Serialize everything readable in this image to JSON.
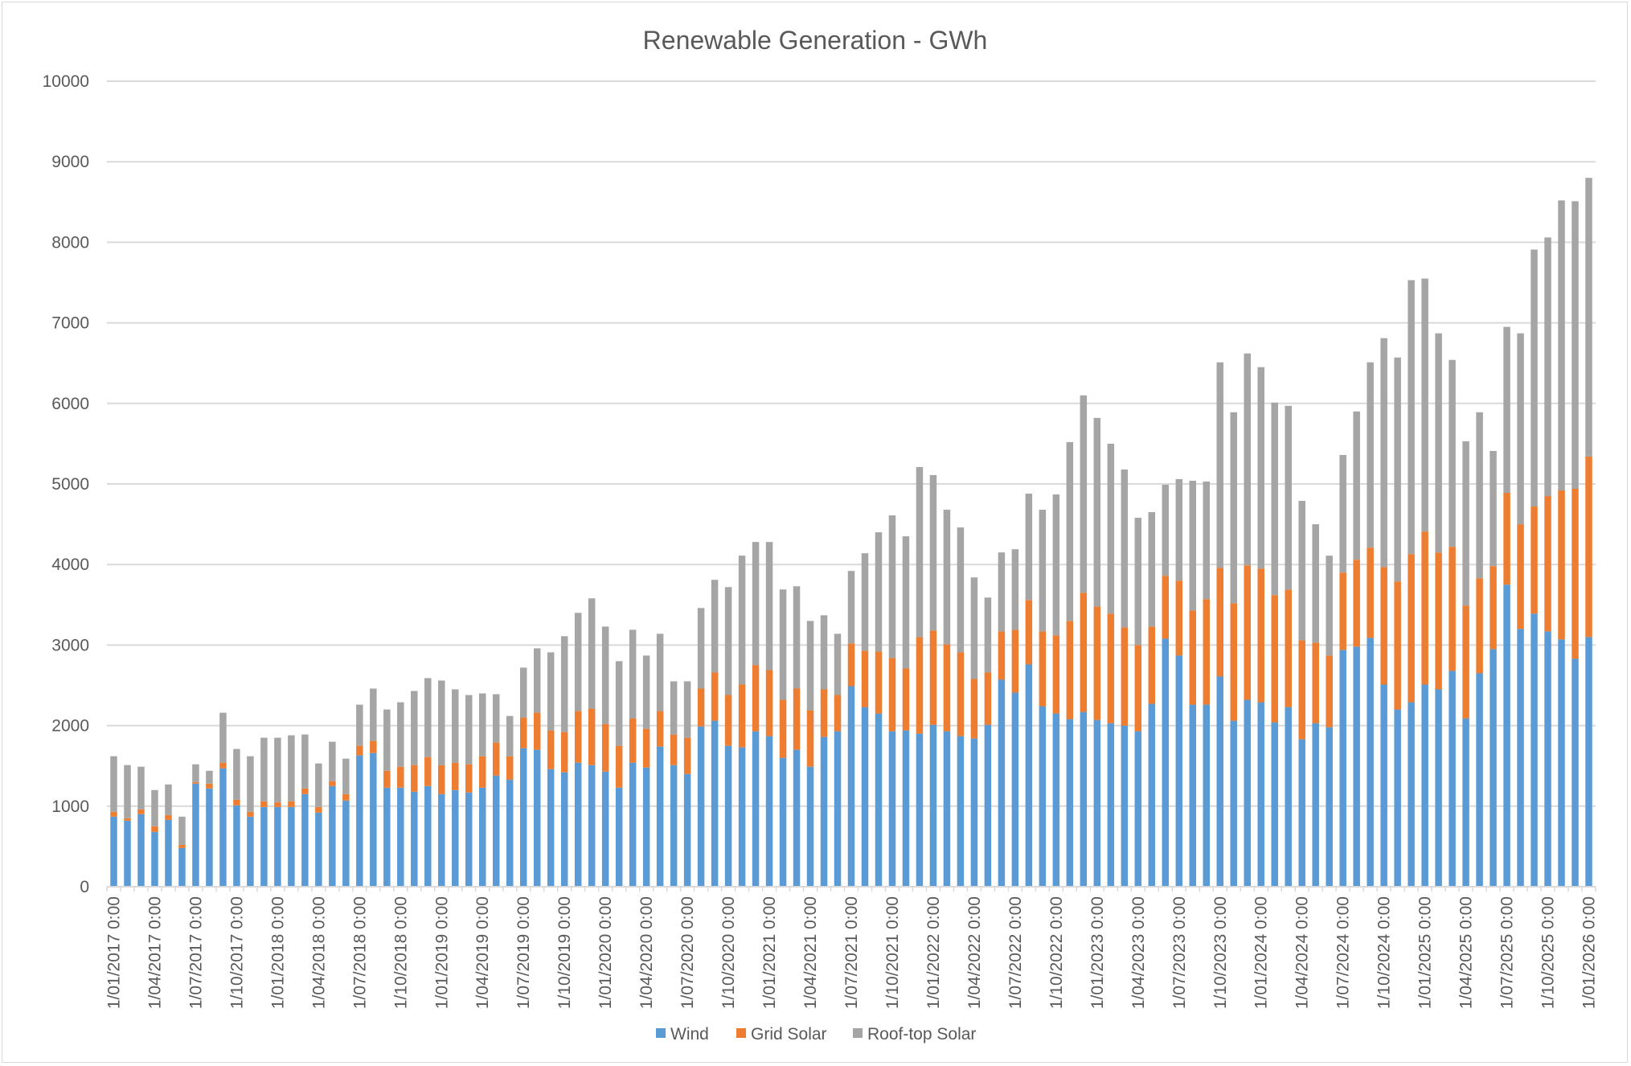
{
  "chart_data": {
    "type": "bar",
    "stacked": true,
    "title": "Renewable Generation - GWh",
    "xlabel": "",
    "ylabel": "",
    "ylim": [
      0,
      10000
    ],
    "yticks": [
      0,
      1000,
      2000,
      3000,
      4000,
      5000,
      6000,
      7000,
      8000,
      9000,
      10000
    ],
    "grid": true,
    "legend_position": "bottom",
    "x_tick_labels": [
      "1/01/2017 0:00",
      "1/04/2017 0:00",
      "1/07/2017 0:00",
      "1/10/2017 0:00",
      "1/01/2018 0:00",
      "1/04/2018 0:00",
      "1/07/2018 0:00",
      "1/10/2018 0:00",
      "1/01/2019 0:00",
      "1/04/2019 0:00",
      "1/07/2019 0:00",
      "1/10/2019 0:00",
      "1/01/2020 0:00",
      "1/04/2020 0:00",
      "1/07/2020 0:00",
      "1/10/2020 0:00",
      "1/01/2021 0:00",
      "1/04/2021 0:00",
      "1/07/2021 0:00",
      "1/10/2021 0:00",
      "1/01/2022 0:00",
      "1/04/2022 0:00",
      "1/07/2022 0:00",
      "1/10/2022 0:00",
      "1/01/2023 0:00",
      "1/04/2023 0:00",
      "1/07/2023 0:00",
      "1/10/2023 0:00",
      "1/01/2024 0:00",
      "1/04/2024 0:00",
      "1/07/2024 0:00",
      "1/10/2024 0:00",
      "1/01/2025 0:00",
      "1/04/2025 0:00",
      "1/07/2025 0:00",
      "1/10/2025 0:00",
      "1/01/2026 0:00"
    ],
    "series": [
      {
        "name": "Wind",
        "color": "#5b9bd5",
        "values": [
          870,
          820,
          900,
          680,
          830,
          480,
          1280,
          1220,
          1470,
          1010,
          870,
          990,
          990,
          990,
          1150,
          920,
          1250,
          1070,
          1630,
          1660,
          1230,
          1230,
          1180,
          1250,
          1150,
          1200,
          1170,
          1230,
          1380,
          1330,
          1720,
          1700,
          1460,
          1420,
          1540,
          1510,
          1430,
          1230,
          1540,
          1480,
          1740,
          1510,
          1400,
          1990,
          2060,
          1750,
          1730,
          1930,
          1870,
          1600,
          1700,
          1490,
          1860,
          1930,
          2490,
          2230,
          2150,
          1930,
          1940,
          1900,
          2010,
          1930,
          1870,
          1840,
          2010,
          2570,
          2410,
          2760,
          2240,
          2150,
          2080,
          2170,
          2070,
          2030,
          2000,
          1930,
          2270,
          3080,
          2870,
          2260,
          2260,
          2610,
          2060,
          2320,
          2290,
          2040,
          2230,
          1830,
          2030,
          1980,
          2940,
          2980,
          3090,
          2510,
          2200,
          2290,
          2510,
          2450,
          2680,
          2090,
          2650,
          2950,
          3750,
          3200,
          3390,
          3170,
          3070,
          2830,
          3100
        ]
      },
      {
        "name": "Grid Solar",
        "color": "#ed7d31",
        "values": [
          60,
          30,
          60,
          70,
          60,
          40,
          20,
          60,
          70,
          70,
          60,
          70,
          60,
          70,
          70,
          70,
          60,
          80,
          120,
          150,
          210,
          260,
          330,
          360,
          360,
          340,
          350,
          390,
          410,
          290,
          380,
          460,
          480,
          500,
          640,
          700,
          590,
          520,
          550,
          480,
          440,
          380,
          450,
          470,
          600,
          630,
          780,
          820,
          820,
          720,
          760,
          700,
          590,
          450,
          530,
          700,
          770,
          910,
          770,
          1200,
          1170,
          1080,
          1040,
          740,
          650,
          600,
          780,
          800,
          930,
          970,
          1220,
          1480,
          1410,
          1360,
          1220,
          1070,
          960,
          780,
          930,
          1170,
          1310,
          1350,
          1460,
          1670,
          1660,
          1580,
          1460,
          1230,
          1000,
          890,
          960,
          1080,
          1120,
          1460,
          1590,
          1840,
          1900,
          1700,
          1540,
          1400,
          1180,
          1030,
          1140,
          1300,
          1330,
          1680,
          1850,
          2110,
          2240
        ]
      },
      {
        "name": "Roof-top Solar",
        "color": "#a5a5a5",
        "values": [
          690,
          660,
          530,
          450,
          380,
          350,
          220,
          160,
          620,
          630,
          690,
          790,
          800,
          820,
          670,
          540,
          490,
          440,
          510,
          650,
          760,
          800,
          920,
          980,
          1050,
          910,
          860,
          780,
          600,
          500,
          620,
          800,
          970,
          1190,
          1220,
          1370,
          1210,
          1050,
          1100,
          910,
          960,
          660,
          700,
          1000,
          1150,
          1340,
          1600,
          1530,
          1590,
          1370,
          1270,
          1110,
          920,
          760,
          900,
          1210,
          1480,
          1770,
          1640,
          2110,
          1930,
          1670,
          1550,
          1260,
          930,
          980,
          1000,
          1320,
          1510,
          1750,
          2220,
          2450,
          2340,
          2110,
          1960,
          1580,
          1420,
          1130,
          1260,
          1610,
          1460,
          2550,
          2370,
          2630,
          2500,
          2390,
          2280,
          1730,
          1470,
          1240,
          1460,
          1840,
          2300,
          2840,
          2780,
          3400,
          3140,
          2720,
          2320,
          2040,
          2060,
          1430,
          2060,
          2370,
          3190,
          3210,
          3600,
          3570,
          3460
        ]
      }
    ]
  }
}
